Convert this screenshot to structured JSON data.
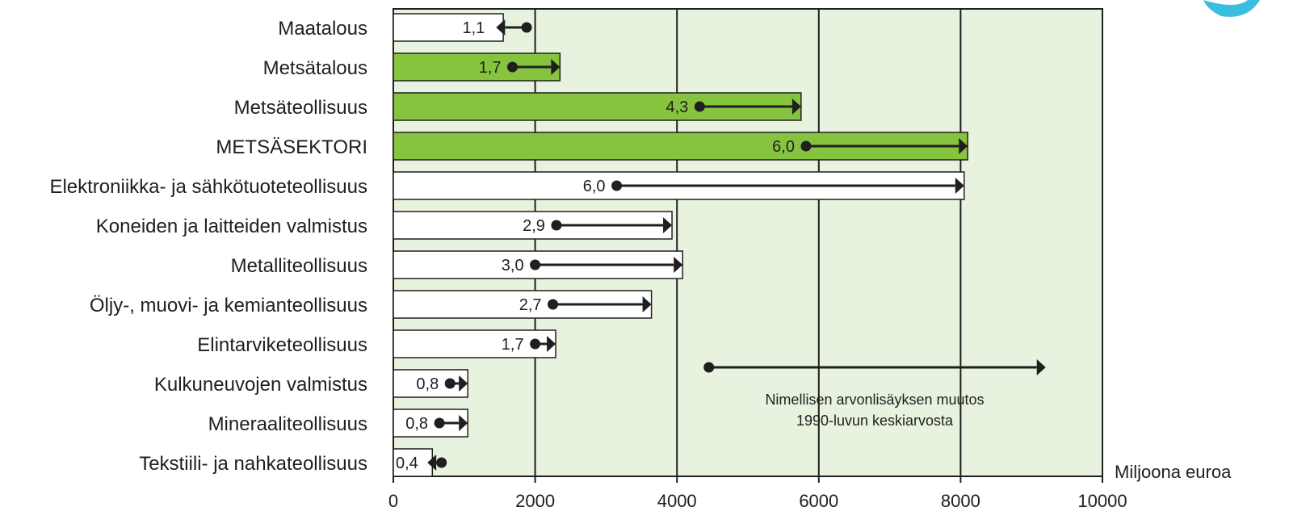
{
  "chart_data": {
    "type": "bar",
    "orientation": "horizontal",
    "categories": [
      "Maatalous",
      "Metsätalous",
      "Metsäteollisuus",
      "METSÄSEKTORI",
      "Elektroniikka- ja sähkötuoteteollisuus",
      "Koneiden ja laitteiden valmistus",
      "Metalliteollisuus",
      "Öljy-, muovi- ja kemianteollisuus",
      "Elintarviketeollisuus",
      "Kulkuneuvojen valmistus",
      "Mineraaliteollisuus",
      "Tekstiili- ja nahkateollisuus"
    ],
    "values": [
      1550,
      2350,
      5750,
      8100,
      8050,
      3930,
      4080,
      3640,
      2290,
      1050,
      1050,
      550
    ],
    "value_labels": [
      "1,1",
      "1,7",
      "4,3",
      "6,0",
      "6,0",
      "2,9",
      "3,0",
      "2,7",
      "1,7",
      "0,8",
      "0,8",
      "0,4"
    ],
    "highlighted": [
      false,
      true,
      true,
      true,
      false,
      false,
      false,
      false,
      false,
      false,
      false,
      false
    ],
    "change_from": [
      1880,
      1680,
      4320,
      5820,
      3150,
      2300,
      2000,
      2250,
      2000,
      800,
      650,
      680
    ],
    "change_to": [
      1450,
      2350,
      5750,
      8100,
      8050,
      3930,
      4080,
      3640,
      2290,
      1050,
      1050,
      480
    ],
    "x_ticks": [
      "0",
      "2000",
      "4000",
      "6000",
      "8000",
      "10000"
    ],
    "xlim": [
      0,
      10000
    ],
    "xlabel": "Miljoona euroa",
    "legend_arrow": {
      "from": 4450,
      "to": 9200
    },
    "legend_text": [
      "Nimellisen arvonlisäyksen muutos",
      "1990-luvun keskiarvosta"
    ],
    "grid": true,
    "colors": {
      "plot_bg": "#e8f3df",
      "highlight_bar": "#86c440",
      "plain_bar": "#ffffff",
      "ink": "#1f1f1f",
      "corner_shape": "#3bbde0"
    }
  }
}
